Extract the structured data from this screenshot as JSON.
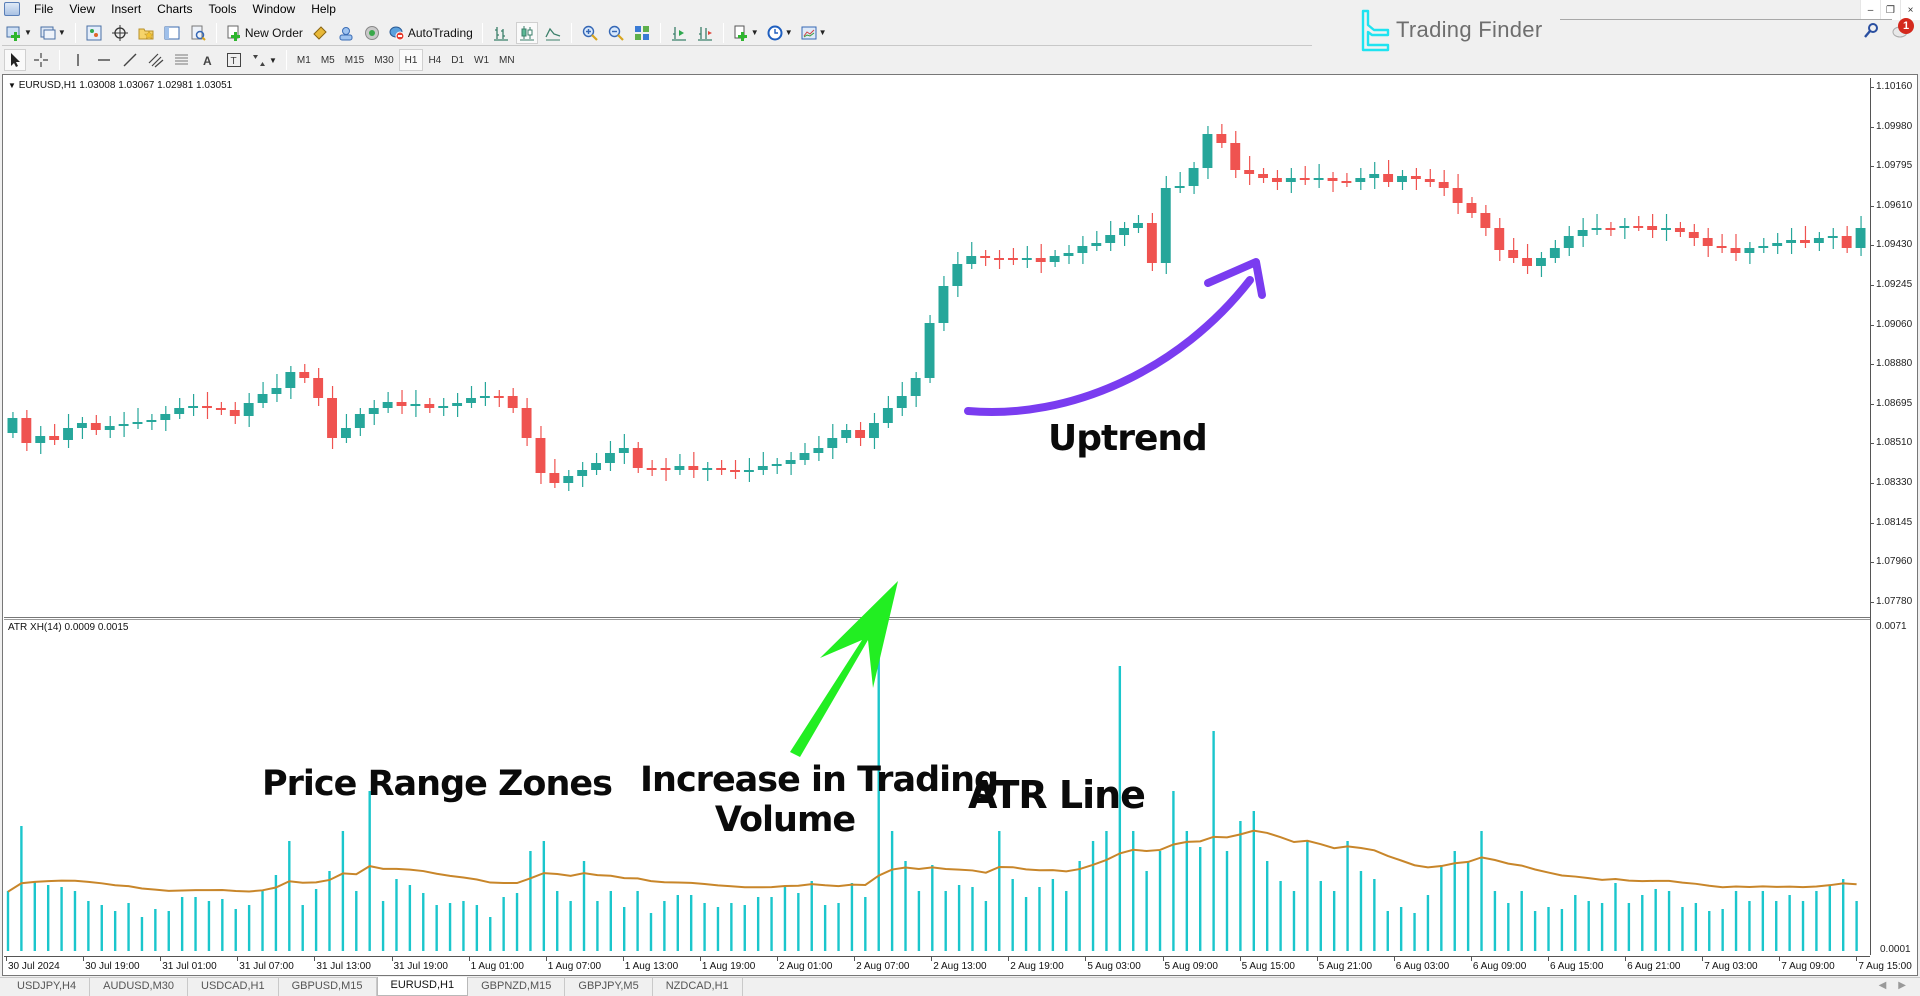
{
  "menu": {
    "items": [
      "File",
      "View",
      "Insert",
      "Charts",
      "Tools",
      "Window",
      "Help"
    ]
  },
  "window_controls": {
    "minimize": "–",
    "restore": "❐",
    "close": "×"
  },
  "toolbar": {
    "new_order": "New Order",
    "autotrading": "AutoTrading",
    "timeframes": [
      "M1",
      "M5",
      "M15",
      "M30",
      "H1",
      "H4",
      "D1",
      "W1",
      "MN"
    ],
    "active_timeframe": "H1"
  },
  "brand": {
    "name": "Trading Finder",
    "color": "#1ee3f0"
  },
  "notifications": {
    "count": "1"
  },
  "chart": {
    "symbol_header": "EURUSD,H1  1.03008 1.03067 1.02981 1.03051",
    "price_axis": [
      "1.10160",
      "1.09980",
      "1.09795",
      "1.09610",
      "1.09430",
      "1.09245",
      "1.09060",
      "1.08880",
      "1.08695",
      "1.08510",
      "1.08330",
      "1.08145",
      "1.07960",
      "1.07780"
    ],
    "indicator_header": "ATR XH(14) 0.0009 0.0015",
    "indicator_axis_top": "0.0071",
    "indicator_axis_bottom": "0.0001",
    "time_axis": [
      "30 Jul 2024",
      "30 Jul 19:00",
      "31 Jul 01:00",
      "31 Jul 07:00",
      "31 Jul 13:00",
      "31 Jul 19:00",
      "1 Aug 01:00",
      "1 Aug 07:00",
      "1 Aug 13:00",
      "1 Aug 19:00",
      "2 Aug 01:00",
      "2 Aug 07:00",
      "2 Aug 13:00",
      "2 Aug 19:00",
      "5 Aug 03:00",
      "5 Aug 09:00",
      "5 Aug 15:00",
      "5 Aug 21:00",
      "6 Aug 03:00",
      "6 Aug 09:00",
      "6 Aug 15:00",
      "6 Aug 21:00",
      "7 Aug 03:00",
      "7 Aug 09:00",
      "7 Aug 15:00"
    ],
    "colors": {
      "bull": "#26a69a",
      "bear": "#ef5350",
      "atr_bars": "#1bc6cc",
      "atr_line": "#c8862a",
      "uptrend_arrow": "#7a3cf0",
      "volume_arrow": "#22ee22"
    }
  },
  "annotations": {
    "uptrend": "Uptrend",
    "price_range": "Price Range Zones",
    "volume_line1": "Increase in Trading",
    "volume_line2": "Volume",
    "atr_line": "ATR Line"
  },
  "tabs": [
    {
      "label": "USDJPY,H4",
      "active": false
    },
    {
      "label": "AUDUSD,M30",
      "active": false
    },
    {
      "label": "USDCAD,H1",
      "active": false
    },
    {
      "label": "GBPUSD,M15",
      "active": false
    },
    {
      "label": "EURUSD,H1",
      "active": true
    },
    {
      "label": "GBPNZD,M15",
      "active": false
    },
    {
      "label": "GBPJPY,M5",
      "active": false
    },
    {
      "label": "NZDCAD,H1",
      "active": false
    }
  ]
}
